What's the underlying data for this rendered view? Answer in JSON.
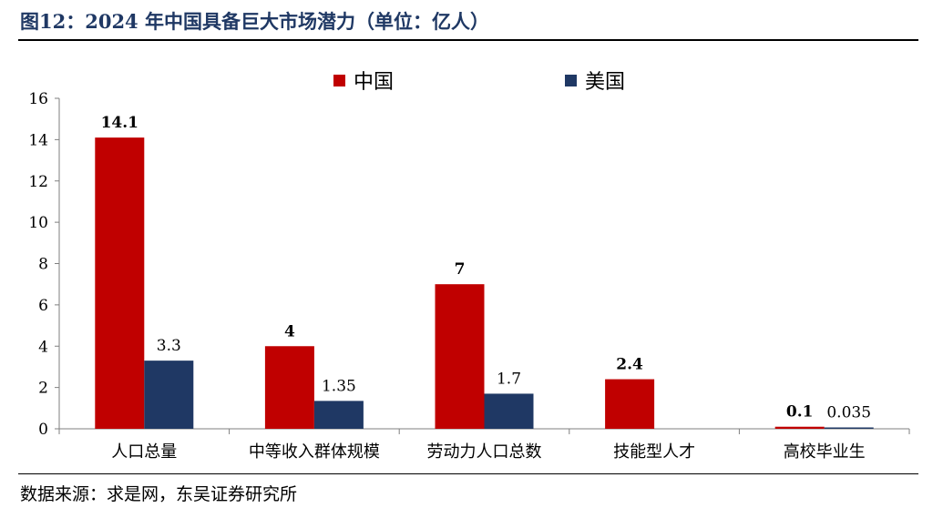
{
  "figure": {
    "title": "图12：2024 年中国具备巨大市场潜力（单位：亿人）",
    "source": "数据来源：求是网，东吴证券研究所"
  },
  "legend": [
    {
      "name": "中国",
      "color": "#c00000"
    },
    {
      "name": "美国",
      "color": "#1f3864"
    }
  ],
  "chart_data": {
    "type": "bar",
    "categories": [
      "人口总量",
      "中等收入群体规模",
      "劳动力人口总数",
      "技能型人才",
      "高校毕业生"
    ],
    "series": [
      {
        "name": "中国",
        "color": "#c00000",
        "values": [
          14.1,
          4,
          7,
          2.4,
          0.1
        ],
        "labels": [
          "14.1",
          "4",
          "7",
          "2.4",
          "0.1"
        ]
      },
      {
        "name": "美国",
        "color": "#1f3864",
        "values": [
          3.3,
          1.35,
          1.7,
          null,
          0.035
        ],
        "labels": [
          "3.3",
          "1.35",
          "1.7",
          "",
          "0.035"
        ]
      }
    ],
    "ylim": [
      0,
      16
    ],
    "yticks": [
      0,
      2,
      4,
      6,
      8,
      10,
      12,
      14,
      16
    ],
    "grid": false,
    "legend_position": "top-center"
  }
}
